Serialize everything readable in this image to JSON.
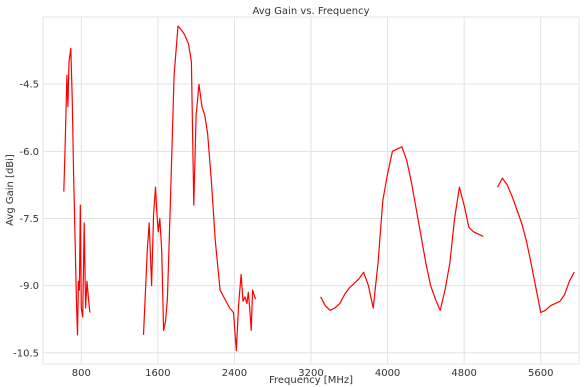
{
  "chart_data": {
    "type": "line",
    "title": "Avg Gain vs. Frequency",
    "xlabel": "Frequency [MHz]",
    "ylabel": "Avg Gain [dBi]",
    "xlim": [
      400,
      6000
    ],
    "ylim": [
      -10.75,
      -3.0
    ],
    "grid": true,
    "legend": "none",
    "x_ticks": [
      800,
      1600,
      2400,
      3200,
      4000,
      4800,
      5600
    ],
    "y_ticks": [
      -10.5,
      -9.0,
      -7.5,
      -6.0,
      -4.5
    ],
    "x_tick_labels": [
      "800",
      "1600",
      "2400",
      "3200",
      "4000",
      "4800",
      "5600"
    ],
    "y_tick_labels": [
      "-10.5",
      "-9.0",
      "-7.5",
      "-6.0",
      "-4.5"
    ],
    "series_color": "#ff0000",
    "segments": [
      {
        "x": [
          617,
          630,
          650,
          660,
          672,
          690,
          705,
          720,
          735,
          750,
          760,
          770,
          780,
          790,
          800,
          815,
          830,
          845,
          860,
          875,
          890
        ],
        "y": [
          -6.9,
          -6.0,
          -4.3,
          -5.0,
          -4.0,
          -3.7,
          -4.8,
          -6.5,
          -8.0,
          -9.4,
          -10.1,
          -8.9,
          -9.1,
          -7.2,
          -9.5,
          -9.7,
          -7.6,
          -9.5,
          -8.9,
          -9.3,
          -9.6
        ]
      },
      {
        "x": [
          1450,
          1490,
          1510,
          1535,
          1555,
          1575,
          1590,
          1605,
          1620,
          1640,
          1660,
          1680,
          1700,
          1730,
          1770,
          1810,
          1850,
          1880,
          1920,
          1950,
          1975,
          2000,
          2030,
          2060,
          2090,
          2120,
          2160,
          2200,
          2250,
          2300,
          2350,
          2390,
          2420,
          2445,
          2470,
          2490,
          2510,
          2530,
          2545,
          2560,
          2575,
          2590,
          2605,
          2620
        ],
        "y": [
          -10.1,
          -8.2,
          -7.6,
          -9.0,
          -7.4,
          -6.8,
          -7.4,
          -7.8,
          -7.5,
          -8.2,
          -10.0,
          -9.8,
          -9.3,
          -7.2,
          -4.3,
          -3.2,
          -3.3,
          -3.4,
          -3.6,
          -4.0,
          -7.2,
          -5.2,
          -4.5,
          -5.0,
          -5.2,
          -5.6,
          -6.7,
          -8.0,
          -9.1,
          -9.3,
          -9.5,
          -9.6,
          -10.45,
          -9.4,
          -8.75,
          -9.35,
          -9.25,
          -9.4,
          -9.15,
          -9.5,
          -10.0,
          -9.1,
          -9.2,
          -9.3
        ]
      },
      {
        "x": [
          3300,
          3350,
          3400,
          3450,
          3500,
          3550,
          3600,
          3650,
          3700,
          3750,
          3800,
          3850,
          3900,
          3950,
          4000,
          4050,
          4100,
          4150,
          4200,
          4250,
          4300,
          4350,
          4400,
          4450,
          4500,
          4550,
          4600,
          4650,
          4700,
          4750,
          4800,
          4850,
          4900,
          4950,
          5000
        ],
        "y": [
          -9.25,
          -9.45,
          -9.55,
          -9.5,
          -9.4,
          -9.2,
          -9.05,
          -8.95,
          -8.85,
          -8.7,
          -9.0,
          -9.5,
          -8.5,
          -7.1,
          -6.5,
          -6.0,
          -5.95,
          -5.9,
          -6.2,
          -6.7,
          -7.3,
          -7.9,
          -8.5,
          -9.0,
          -9.3,
          -9.55,
          -9.1,
          -8.5,
          -7.5,
          -6.8,
          -7.2,
          -7.7,
          -7.8,
          -7.85,
          -7.9
        ]
      },
      {
        "x": [
          5150,
          5200,
          5250,
          5300,
          5350,
          5400,
          5450,
          5500,
          5550,
          5600,
          5650,
          5700,
          5750,
          5800,
          5850,
          5900,
          5950
        ],
        "y": [
          -6.8,
          -6.6,
          -6.75,
          -7.0,
          -7.3,
          -7.6,
          -8.0,
          -8.5,
          -9.05,
          -9.6,
          -9.55,
          -9.45,
          -9.4,
          -9.35,
          -9.2,
          -8.9,
          -8.7
        ]
      }
    ]
  }
}
